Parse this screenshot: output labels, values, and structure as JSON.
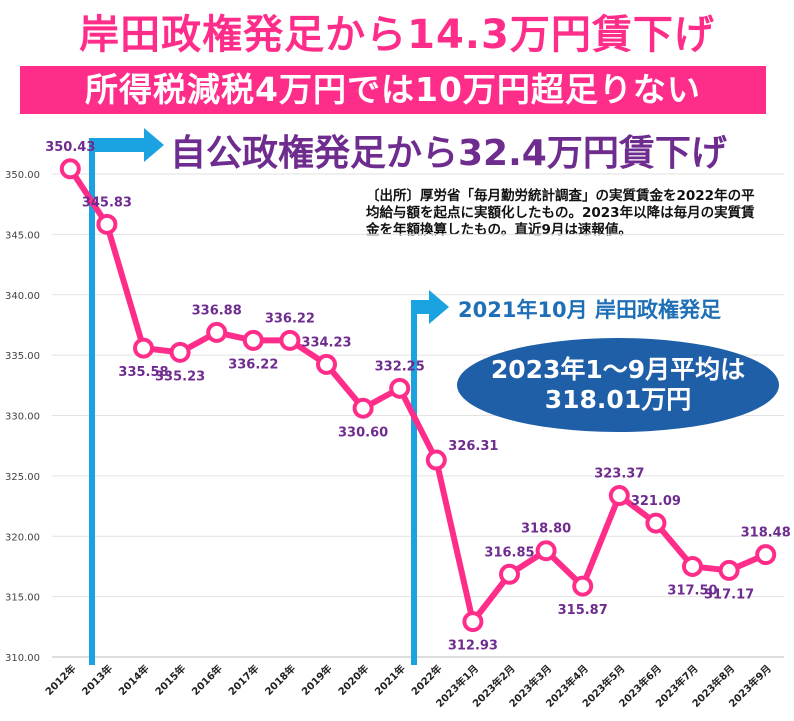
{
  "title": "岸田政権発足から14.3万円賃下げ",
  "subtitle": "所得税減税4万円では10万円超足りない",
  "annotation_jimin": "自公政権発足から32.4万円賃下げ",
  "source_note": "〔出所〕厚労省「毎月勤労統計調査」の実質賃金を2022年の平均給与額を起点に実額化したもの。2023年以降は毎月の実質賃金を年額換算したもの。直近9月は速報値。",
  "annotation_kishida": "2021年10月 岸田政権発足",
  "oval_line1": "2023年1～9月平均は",
  "oval_line2": "318.01万円",
  "colors": {
    "line": "#ff2d8a",
    "label": "#6f2c8f",
    "arrow": "#1aa3e0",
    "oval": "#1e5fa8"
  },
  "chart_data": {
    "type": "line",
    "categories": [
      "2012年",
      "2013年",
      "2014年",
      "2015年",
      "2016年",
      "2017年",
      "2018年",
      "2019年",
      "2020年",
      "2021年",
      "2022年",
      "2023年1月",
      "2023年2月",
      "2023年3月",
      "2023年4月",
      "2023年5月",
      "2023年6月",
      "2023年7月",
      "2023年8月",
      "2023年9月"
    ],
    "values": [
      350.43,
      345.83,
      335.58,
      335.23,
      336.88,
      336.22,
      336.22,
      334.23,
      330.6,
      332.25,
      326.31,
      312.93,
      316.85,
      318.8,
      315.87,
      323.37,
      321.09,
      317.5,
      317.17,
      318.48
    ],
    "labels": [
      "350.43",
      "345.83",
      "335.58",
      "335.23",
      "336.88",
      "336.22",
      "336.22",
      "334.23",
      "330.60",
      "332.25",
      "326.31",
      "312.93",
      "316.85",
      "318.80",
      "315.87",
      "323.37",
      "321.09",
      "317.50",
      "317.17",
      "318.48"
    ],
    "yticks": [
      "310.00",
      "315.00",
      "320.00",
      "325.00",
      "330.00",
      "335.00",
      "340.00",
      "345.00",
      "350.00"
    ],
    "ylim": [
      310,
      352
    ],
    "grid": true,
    "title": "",
    "xlabel": "",
    "ylabel": ""
  }
}
